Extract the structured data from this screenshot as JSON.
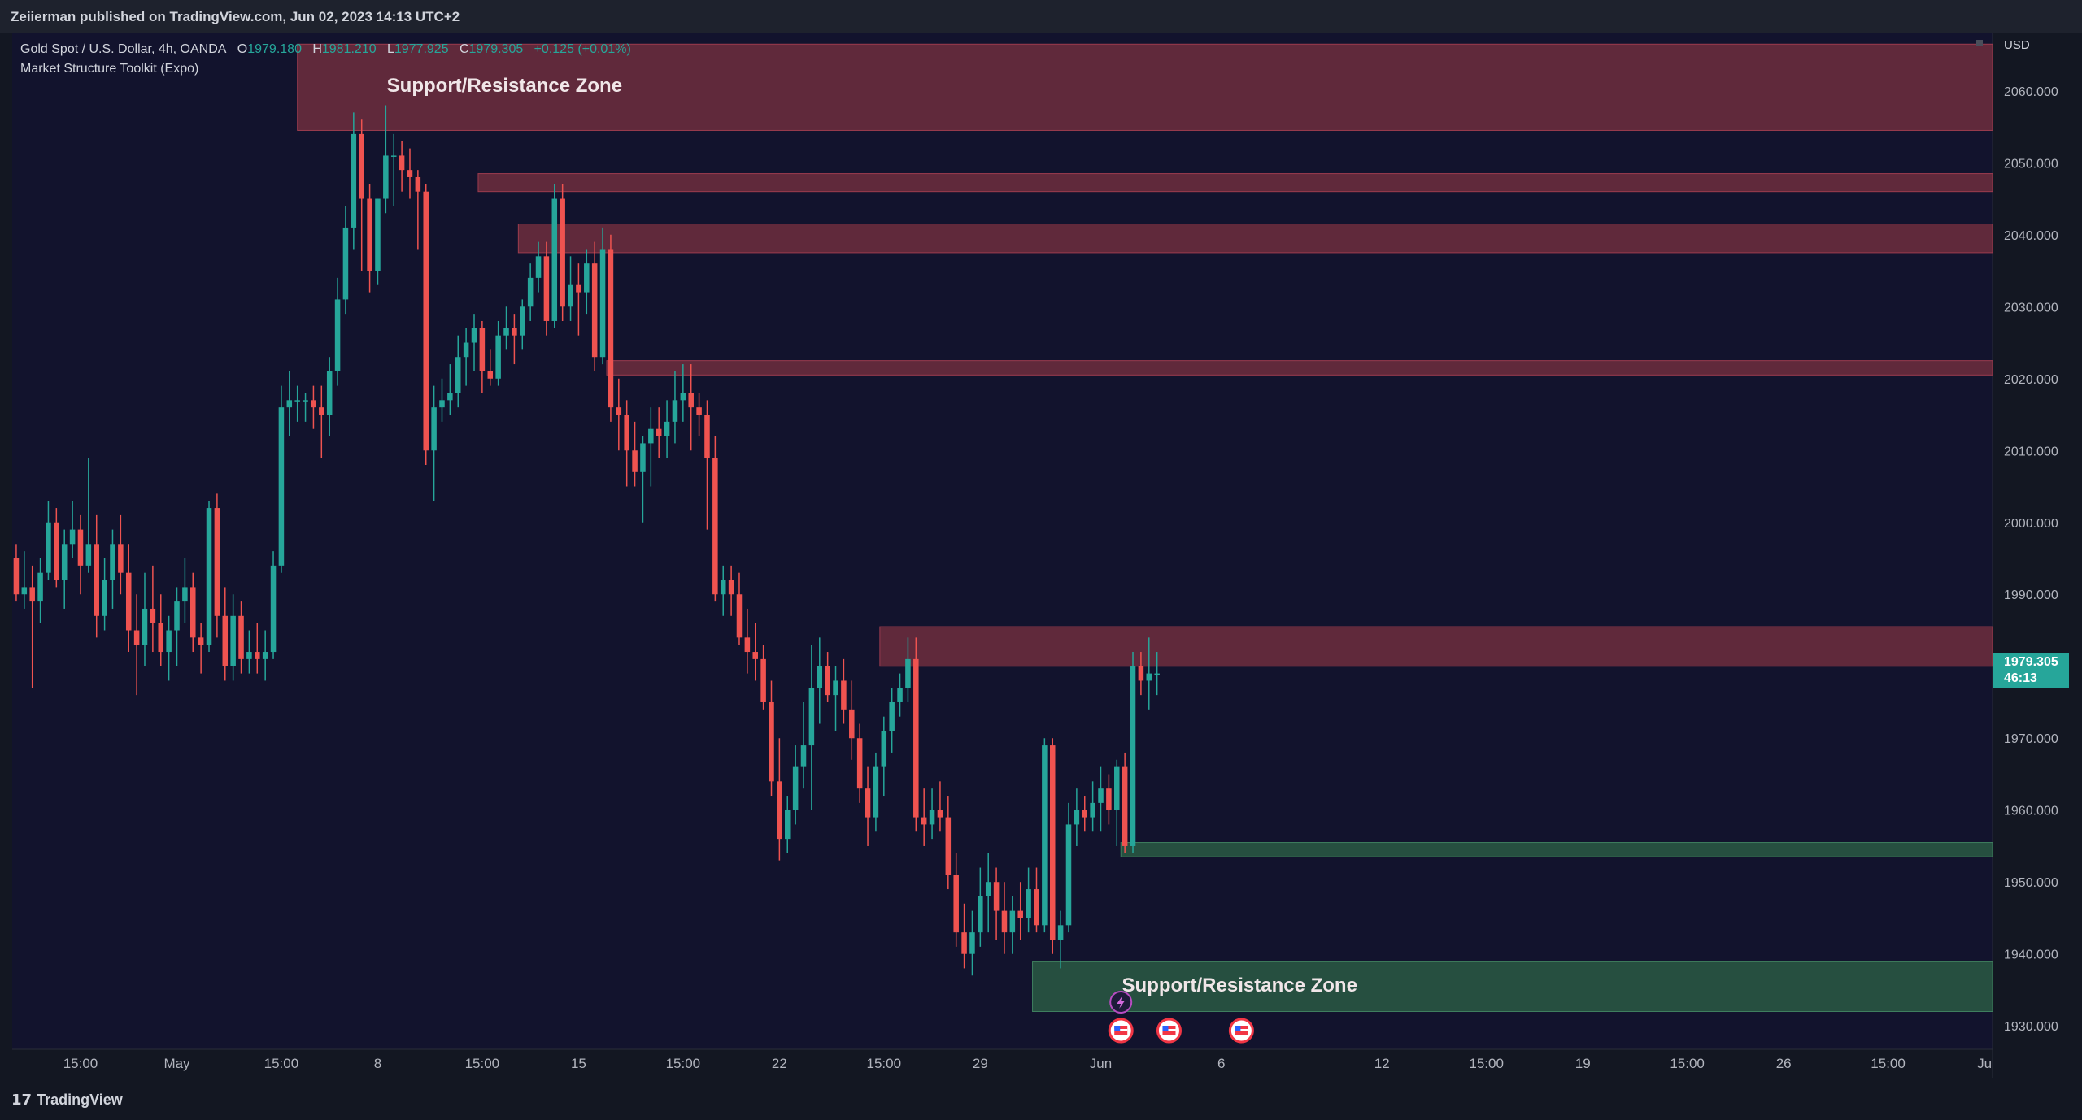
{
  "header": {
    "published": "Zeiierman published on TradingView.com, Jun 02, 2023 14:13 UTC+2"
  },
  "legend": {
    "symbol": "Gold Spot / U.S. Dollar, 4h, OANDA",
    "open_label": "O",
    "open": "1979.180",
    "high_label": "H",
    "high": "1981.210",
    "low_label": "L",
    "low": "1977.925",
    "close_label": "C",
    "close": "1979.305",
    "change": "+0.125 (+0.01%)",
    "indicator": "Market Structure Toolkit (Expo)"
  },
  "currency": "USD",
  "price_tag": {
    "price": "1979.305",
    "countdown": "46:13"
  },
  "brand": "TradingView",
  "colors": {
    "up": "#26a69a",
    "down": "#ef5350",
    "background": "#12132d",
    "resistance": "#6e2e3e",
    "support": "#2a5a44"
  },
  "chart_data": {
    "type": "candlestick",
    "title": "Gold Spot / U.S. Dollar, 4h, OANDA",
    "ylabel": "USD",
    "ylim": [
      1922,
      2068
    ],
    "y_ticks": [
      "2060.000",
      "2050.000",
      "2040.000",
      "2030.000",
      "2020.000",
      "2010.000",
      "2000.000",
      "1990.000",
      "1980.000",
      "1970.000",
      "1960.000",
      "1950.000",
      "1940.000",
      "1930.000"
    ],
    "y_tick_values": [
      2060,
      2050,
      2040,
      2030,
      2020,
      2010,
      2000,
      1990,
      1980,
      1970,
      1960,
      1950,
      1940,
      1930
    ],
    "x_ticks": [
      {
        "label": "15:00",
        "i": 8
      },
      {
        "label": "May",
        "i": 20
      },
      {
        "label": "15:00",
        "i": 33
      },
      {
        "label": "8",
        "i": 45
      },
      {
        "label": "15:00",
        "i": 58
      },
      {
        "label": "15",
        "i": 70
      },
      {
        "label": "15:00",
        "i": 83
      },
      {
        "label": "22",
        "i": 95
      },
      {
        "label": "15:00",
        "i": 108
      },
      {
        "label": "29",
        "i": 120
      },
      {
        "label": "Jun",
        "i": 135
      },
      {
        "label": "6",
        "i": 150
      },
      {
        "label": "12",
        "i": 170
      },
      {
        "label": "15:00",
        "i": 183
      },
      {
        "label": "19",
        "i": 195
      },
      {
        "label": "15:00",
        "i": 208
      },
      {
        "label": "26",
        "i": 220
      },
      {
        "label": "15:00",
        "i": 233
      },
      {
        "label": "Ju",
        "i": 245
      }
    ],
    "x_range": [
      -0.5,
      246
    ],
    "zones": [
      {
        "kind": "resistance",
        "start": 35,
        "bottom": 2054.5,
        "top": 2066.5,
        "label": "Support/Resistance Zone"
      },
      {
        "kind": "resistance",
        "start": 57.5,
        "bottom": 2046,
        "top": 2048.5,
        "label": ""
      },
      {
        "kind": "resistance",
        "start": 62.5,
        "bottom": 2037.5,
        "top": 2041.5,
        "label": ""
      },
      {
        "kind": "resistance",
        "start": 73.5,
        "bottom": 2020.5,
        "top": 2022.5,
        "label": ""
      },
      {
        "kind": "resistance",
        "start": 107.5,
        "bottom": 1980,
        "top": 1985.5,
        "label": ""
      },
      {
        "kind": "support",
        "start": 137.5,
        "bottom": 1953.5,
        "top": 1955.5,
        "label": ""
      },
      {
        "kind": "support",
        "start": 126.5,
        "bottom": 1932,
        "top": 1939,
        "label": "Support/Resistance Zone"
      }
    ],
    "candles": [
      [
        1995,
        1997,
        1989,
        1990
      ],
      [
        1990,
        1996,
        1988,
        1991
      ],
      [
        1991,
        1994,
        1977,
        1989
      ],
      [
        1989,
        1995,
        1986,
        1993
      ],
      [
        1993,
        2003,
        1992,
        2000
      ],
      [
        2000,
        2002,
        1991,
        1992
      ],
      [
        1992,
        1999,
        1988,
        1997
      ],
      [
        1997,
        2003,
        1995,
        1999
      ],
      [
        1999,
        2001,
        1990,
        1994
      ],
      [
        1994,
        2009,
        1993,
        1997
      ],
      [
        1997,
        2001,
        1984,
        1987
      ],
      [
        1987,
        1995,
        1985,
        1992
      ],
      [
        1992,
        1999,
        1988,
        1997
      ],
      [
        1997,
        2001,
        1990,
        1993
      ],
      [
        1993,
        1997,
        1982,
        1985
      ],
      [
        1985,
        1990,
        1976,
        1983
      ],
      [
        1983,
        1993,
        1980,
        1988
      ],
      [
        1988,
        1994,
        1982,
        1986
      ],
      [
        1986,
        1990,
        1980,
        1982
      ],
      [
        1982,
        1987,
        1978,
        1985
      ],
      [
        1985,
        1991,
        1980,
        1989
      ],
      [
        1989,
        1995,
        1986,
        1991
      ],
      [
        1991,
        1993,
        1982,
        1984
      ],
      [
        1984,
        1986,
        1979,
        1983
      ],
      [
        1983,
        2003,
        1982,
        2002
      ],
      [
        2002,
        2004,
        1984,
        1987
      ],
      [
        1987,
        1991,
        1978,
        1980
      ],
      [
        1980,
        1990,
        1978,
        1987
      ],
      [
        1987,
        1989,
        1979,
        1981
      ],
      [
        1981,
        1985,
        1979,
        1982
      ],
      [
        1982,
        1986,
        1979,
        1981
      ],
      [
        1981,
        1985,
        1978,
        1982
      ],
      [
        1982,
        1996,
        1981,
        1994
      ],
      [
        1994,
        2019,
        1993,
        2016
      ],
      [
        2016,
        2021,
        2012,
        2017
      ],
      [
        2017,
        2019,
        2014,
        2017
      ],
      [
        2017,
        2018,
        2014,
        2017
      ],
      [
        2017,
        2019,
        2013,
        2016
      ],
      [
        2016,
        2019,
        2009,
        2015
      ],
      [
        2015,
        2023,
        2012,
        2021
      ],
      [
        2021,
        2034,
        2019,
        2031
      ],
      [
        2031,
        2044,
        2029,
        2041
      ],
      [
        2041,
        2057,
        2038,
        2054
      ],
      [
        2054,
        2056,
        2035,
        2045
      ],
      [
        2045,
        2047,
        2032,
        2035
      ],
      [
        2035,
        2045,
        2033,
        2045
      ],
      [
        2045,
        2058,
        2043,
        2051
      ],
      [
        2051,
        2054,
        2044,
        2051
      ],
      [
        2051,
        2053,
        2046,
        2049
      ],
      [
        2049,
        2052,
        2045,
        2048
      ],
      [
        2048,
        2049,
        2038,
        2046
      ],
      [
        2046,
        2047,
        2008,
        2010
      ],
      [
        2010,
        2019,
        2003,
        2016
      ],
      [
        2016,
        2020,
        2014,
        2017
      ],
      [
        2017,
        2022,
        2015,
        2018
      ],
      [
        2018,
        2026,
        2016,
        2023
      ],
      [
        2023,
        2027,
        2019,
        2025
      ],
      [
        2025,
        2029,
        2021,
        2027
      ],
      [
        2027,
        2028,
        2018,
        2021
      ],
      [
        2021,
        2024,
        2019,
        2020
      ],
      [
        2020,
        2028,
        2019,
        2026
      ],
      [
        2026,
        2030,
        2024,
        2027
      ],
      [
        2027,
        2029,
        2022,
        2026
      ],
      [
        2026,
        2031,
        2024,
        2030
      ],
      [
        2030,
        2036,
        2028,
        2034
      ],
      [
        2034,
        2039,
        2032,
        2037
      ],
      [
        2037,
        2039,
        2026,
        2028
      ],
      [
        2028,
        2047,
        2027,
        2045
      ],
      [
        2045,
        2047,
        2028,
        2030
      ],
      [
        2030,
        2037,
        2028,
        2033
      ],
      [
        2033,
        2036,
        2026,
        2032
      ],
      [
        2032,
        2038,
        2029,
        2036
      ],
      [
        2036,
        2039,
        2021,
        2023
      ],
      [
        2023,
        2041,
        2022,
        2038
      ],
      [
        2038,
        2040,
        2014,
        2016
      ],
      [
        2016,
        2020,
        2010,
        2015
      ],
      [
        2015,
        2017,
        2005,
        2010
      ],
      [
        2010,
        2014,
        2005,
        2007
      ],
      [
        2007,
        2012,
        2000,
        2011
      ],
      [
        2011,
        2016,
        2005,
        2013
      ],
      [
        2013,
        2016,
        2009,
        2012
      ],
      [
        2012,
        2017,
        2009,
        2014
      ],
      [
        2014,
        2021,
        2011,
        2017
      ],
      [
        2017,
        2022,
        2014,
        2018
      ],
      [
        2018,
        2022,
        2010,
        2016
      ],
      [
        2016,
        2018,
        2012,
        2015
      ],
      [
        2015,
        2017,
        1999,
        2009
      ],
      [
        2009,
        2012,
        1989,
        1990
      ],
      [
        1990,
        1994,
        1987,
        1992
      ],
      [
        1992,
        1994,
        1987,
        1990
      ],
      [
        1990,
        1993,
        1983,
        1984
      ],
      [
        1984,
        1988,
        1979,
        1982
      ],
      [
        1982,
        1986,
        1978,
        1981
      ],
      [
        1981,
        1983,
        1974,
        1975
      ],
      [
        1975,
        1978,
        1962,
        1964
      ],
      [
        1964,
        1970,
        1953,
        1956
      ],
      [
        1956,
        1962,
        1954,
        1960
      ],
      [
        1960,
        1969,
        1958,
        1966
      ],
      [
        1966,
        1975,
        1963,
        1969
      ],
      [
        1969,
        1983,
        1960,
        1977
      ],
      [
        1977,
        1984,
        1972,
        1980
      ],
      [
        1980,
        1982,
        1975,
        1976
      ],
      [
        1976,
        1980,
        1971,
        1978
      ],
      [
        1978,
        1981,
        1972,
        1974
      ],
      [
        1974,
        1978,
        1967,
        1970
      ],
      [
        1970,
        1972,
        1961,
        1963
      ],
      [
        1963,
        1966,
        1955,
        1959
      ],
      [
        1959,
        1968,
        1957,
        1966
      ],
      [
        1966,
        1973,
        1962,
        1971
      ],
      [
        1971,
        1977,
        1968,
        1975
      ],
      [
        1975,
        1979,
        1973,
        1977
      ],
      [
        1977,
        1984,
        1975,
        1981
      ],
      [
        1981,
        1984,
        1957,
        1959
      ],
      [
        1959,
        1963,
        1955,
        1958
      ],
      [
        1958,
        1963,
        1956,
        1960
      ],
      [
        1960,
        1964,
        1957,
        1959
      ],
      [
        1959,
        1962,
        1949,
        1951
      ],
      [
        1951,
        1954,
        1941,
        1943
      ],
      [
        1943,
        1947,
        1938,
        1940
      ],
      [
        1940,
        1946,
        1937,
        1943
      ],
      [
        1943,
        1952,
        1941,
        1948
      ],
      [
        1948,
        1954,
        1943,
        1950
      ],
      [
        1950,
        1952,
        1942,
        1946
      ],
      [
        1946,
        1950,
        1940,
        1943
      ],
      [
        1943,
        1948,
        1940,
        1946
      ],
      [
        1946,
        1950,
        1942,
        1945
      ],
      [
        1945,
        1952,
        1943,
        1949
      ],
      [
        1949,
        1952,
        1943,
        1944
      ],
      [
        1944,
        1970,
        1943,
        1969
      ],
      [
        1969,
        1970,
        1940,
        1942
      ],
      [
        1942,
        1946,
        1938,
        1944
      ],
      [
        1944,
        1961,
        1943,
        1958
      ],
      [
        1958,
        1963,
        1955,
        1960
      ],
      [
        1960,
        1962,
        1957,
        1959
      ],
      [
        1959,
        1964,
        1957,
        1961
      ],
      [
        1961,
        1966,
        1957,
        1963
      ],
      [
        1963,
        1965,
        1958,
        1960
      ],
      [
        1960,
        1967,
        1955,
        1966
      ],
      [
        1966,
        1968,
        1954,
        1955
      ],
      [
        1955,
        1982,
        1954,
        1980
      ],
      [
        1980,
        1982,
        1976,
        1978
      ],
      [
        1978,
        1984,
        1974,
        1979
      ],
      [
        1979,
        1982,
        1976,
        1979
      ]
    ]
  },
  "events": [
    {
      "icon": "flash-icon",
      "i": 137.5,
      "row": 0
    },
    {
      "icon": "us-flag-icon",
      "i": 137.5,
      "row": 1
    },
    {
      "icon": "us-flag-icon",
      "i": 143.5,
      "row": 1
    },
    {
      "icon": "us-flag-icon",
      "i": 152.5,
      "row": 1
    }
  ]
}
